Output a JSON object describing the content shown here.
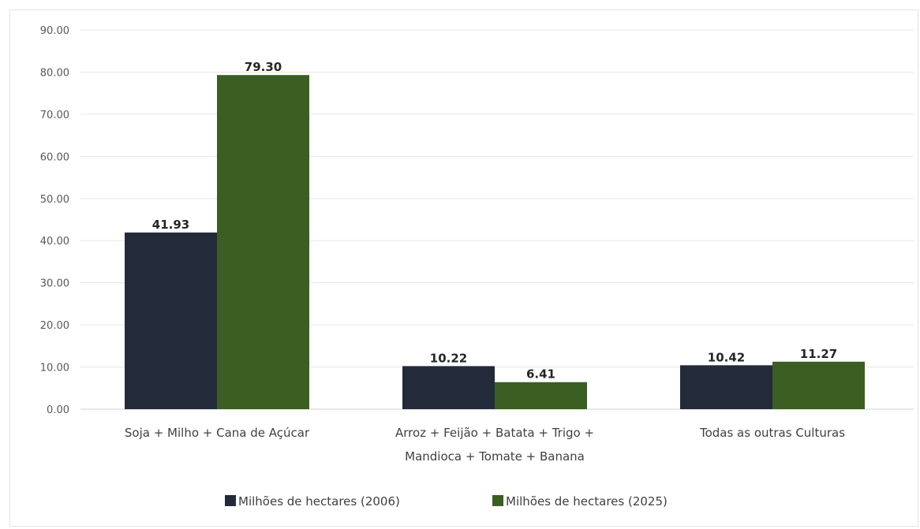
{
  "chart_data": {
    "type": "bar",
    "categories": [
      [
        "Soja + Milho +  Cana de Açúcar"
      ],
      [
        "Arroz + Feijão + Batata + Trigo +",
        "Mandioca + Tomate + Banana"
      ],
      [
        "Todas as outras Culturas"
      ]
    ],
    "series": [
      {
        "name": "Milhões de hectares (2006)",
        "color": "#232b3a",
        "values": [
          41.93,
          10.22,
          10.42
        ]
      },
      {
        "name": "Milhões de hectares (2025)",
        "color": "#3b5e22",
        "values": [
          79.3,
          6.41,
          11.27
        ]
      }
    ],
    "ylim": [
      0,
      90
    ],
    "yticks": [
      "0.00",
      "10.00",
      "20.00",
      "30.00",
      "40.00",
      "50.00",
      "60.00",
      "70.00",
      "80.00",
      "90.00"
    ],
    "data_labels": [
      [
        "41.93",
        "10.22",
        "10.42"
      ],
      [
        "79.30",
        "6.41",
        "11.27"
      ]
    ],
    "grid": true,
    "legend_position": "bottom"
  }
}
